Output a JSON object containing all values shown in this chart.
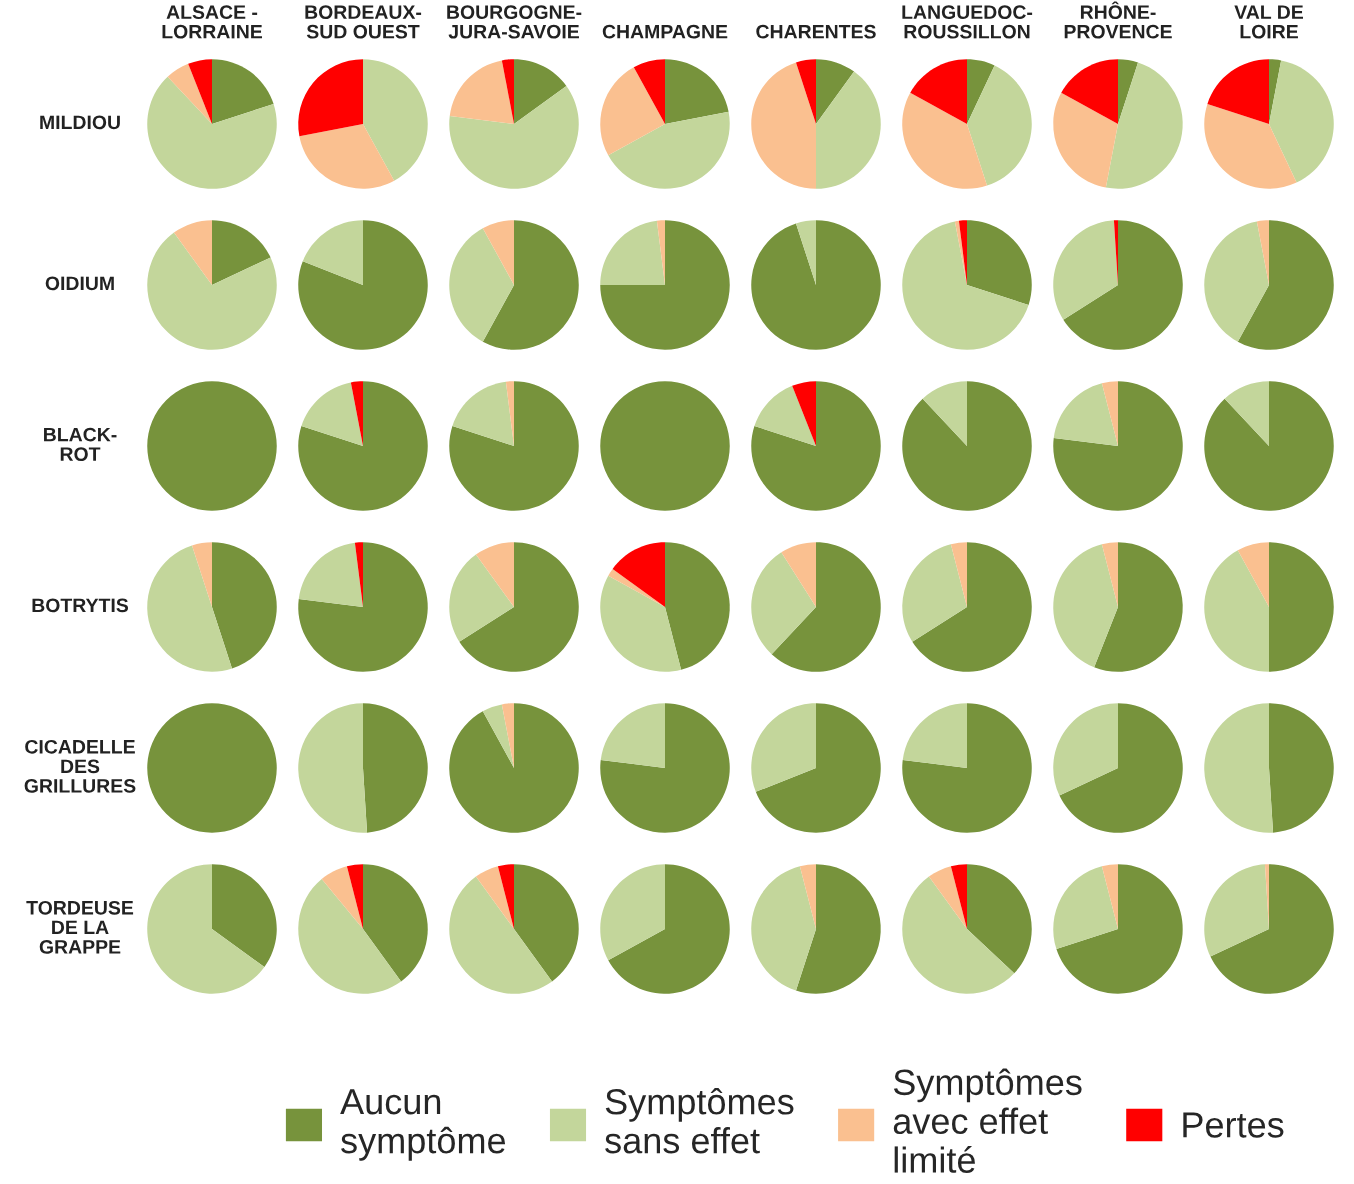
{
  "chart_data": [
    {
      "type": "pie",
      "title": "MILDIOU",
      "legend": "bottom",
      "categories": [
        "Aucun\nsymptôme",
        "Symptômes\nsans effet",
        "Symptômes\navec effet\nlimité",
        "Pertes"
      ],
      "colors": [
        "#77933c",
        "#c3d69b",
        "#fac090",
        "#ff0000"
      ],
      "series": [
        {
          "name": "ALSACE -\nLORRAINE",
          "values": [
            20,
            68,
            6,
            6
          ]
        },
        {
          "name": "BORDEAUX-\nSUD OUEST",
          "values": [
            0,
            42,
            30,
            28
          ]
        },
        {
          "name": "BOURGOGNE-\nJURA-SAVOIE",
          "values": [
            15,
            62,
            20,
            3
          ]
        },
        {
          "name": "CHAMPAGNE",
          "values": [
            22,
            45,
            25,
            8
          ]
        },
        {
          "name": "CHARENTES",
          "values": [
            10,
            40,
            45,
            5
          ]
        },
        {
          "name": "LANGUEDOC-\nROUSSILLON",
          "values": [
            7,
            38,
            38,
            17
          ]
        },
        {
          "name": "RHÔNE-\nPROVENCE",
          "values": [
            5,
            48,
            30,
            17
          ]
        },
        {
          "name": "VAL DE\nLOIRE",
          "values": [
            3,
            40,
            37,
            20
          ]
        }
      ]
    },
    {
      "type": "pie",
      "title": "OIDIUM",
      "colors": [
        "#77933c",
        "#c3d69b",
        "#fac090",
        "#ff0000"
      ],
      "series": [
        {
          "values": [
            18,
            72,
            10,
            0
          ]
        },
        {
          "values": [
            81,
            19,
            0,
            0
          ]
        },
        {
          "values": [
            58,
            34,
            8,
            0
          ]
        },
        {
          "values": [
            75,
            23,
            2,
            0
          ]
        },
        {
          "values": [
            95,
            5,
            0,
            0
          ]
        },
        {
          "values": [
            30,
            67,
            1,
            2
          ]
        },
        {
          "values": [
            66,
            33,
            0,
            1
          ]
        },
        {
          "values": [
            58,
            39,
            3,
            0
          ]
        }
      ]
    },
    {
      "type": "pie",
      "title": "BLACK-\nROT",
      "colors": [
        "#77933c",
        "#c3d69b",
        "#fac090",
        "#ff0000"
      ],
      "series": [
        {
          "values": [
            100,
            0,
            0,
            0
          ]
        },
        {
          "values": [
            80,
            17,
            0,
            3
          ]
        },
        {
          "values": [
            80,
            18,
            2,
            0
          ]
        },
        {
          "values": [
            100,
            0,
            0,
            0
          ]
        },
        {
          "values": [
            80,
            14,
            0,
            6
          ]
        },
        {
          "values": [
            88,
            12,
            0,
            0
          ]
        },
        {
          "values": [
            77,
            19,
            4,
            0
          ]
        },
        {
          "values": [
            88,
            12,
            0,
            0
          ]
        }
      ]
    },
    {
      "type": "pie",
      "title": "BOTRYTIS",
      "colors": [
        "#77933c",
        "#c3d69b",
        "#fac090",
        "#ff0000"
      ],
      "series": [
        {
          "values": [
            45,
            50,
            5,
            0
          ]
        },
        {
          "values": [
            77,
            21,
            0,
            2
          ]
        },
        {
          "values": [
            66,
            24,
            10,
            0
          ]
        },
        {
          "values": [
            46,
            37,
            2,
            15
          ]
        },
        {
          "values": [
            62,
            29,
            9,
            0
          ]
        },
        {
          "values": [
            66,
            30,
            4,
            0
          ]
        },
        {
          "values": [
            56,
            40,
            4,
            0
          ]
        },
        {
          "values": [
            50,
            42,
            8,
            0
          ]
        }
      ]
    },
    {
      "type": "pie",
      "title": "CICADELLE\nDES\nGRILLURES",
      "colors": [
        "#77933c",
        "#c3d69b",
        "#fac090",
        "#ff0000"
      ],
      "series": [
        {
          "values": [
            100,
            0,
            0,
            0
          ]
        },
        {
          "values": [
            49,
            51,
            0,
            0
          ]
        },
        {
          "values": [
            92,
            5,
            3,
            0
          ]
        },
        {
          "values": [
            77,
            23,
            0,
            0
          ]
        },
        {
          "values": [
            69,
            31,
            0,
            0
          ]
        },
        {
          "values": [
            77,
            23,
            0,
            0
          ]
        },
        {
          "values": [
            68,
            32,
            0,
            0
          ]
        },
        {
          "values": [
            49,
            51,
            0,
            0
          ]
        }
      ]
    },
    {
      "type": "pie",
      "title": "TORDEUSE\nDE LA\nGRAPPE",
      "colors": [
        "#77933c",
        "#c3d69b",
        "#fac090",
        "#ff0000"
      ],
      "series": [
        {
          "values": [
            35,
            65,
            0,
            0
          ]
        },
        {
          "values": [
            40,
            49,
            7,
            4
          ]
        },
        {
          "values": [
            40,
            50,
            6,
            4
          ]
        },
        {
          "values": [
            67,
            33,
            0,
            0
          ]
        },
        {
          "values": [
            55,
            41,
            4,
            0
          ]
        },
        {
          "values": [
            37,
            53,
            6,
            4
          ]
        },
        {
          "values": [
            70,
            26,
            4,
            0
          ]
        },
        {
          "values": [
            68,
            31,
            1,
            0
          ]
        }
      ]
    }
  ]
}
